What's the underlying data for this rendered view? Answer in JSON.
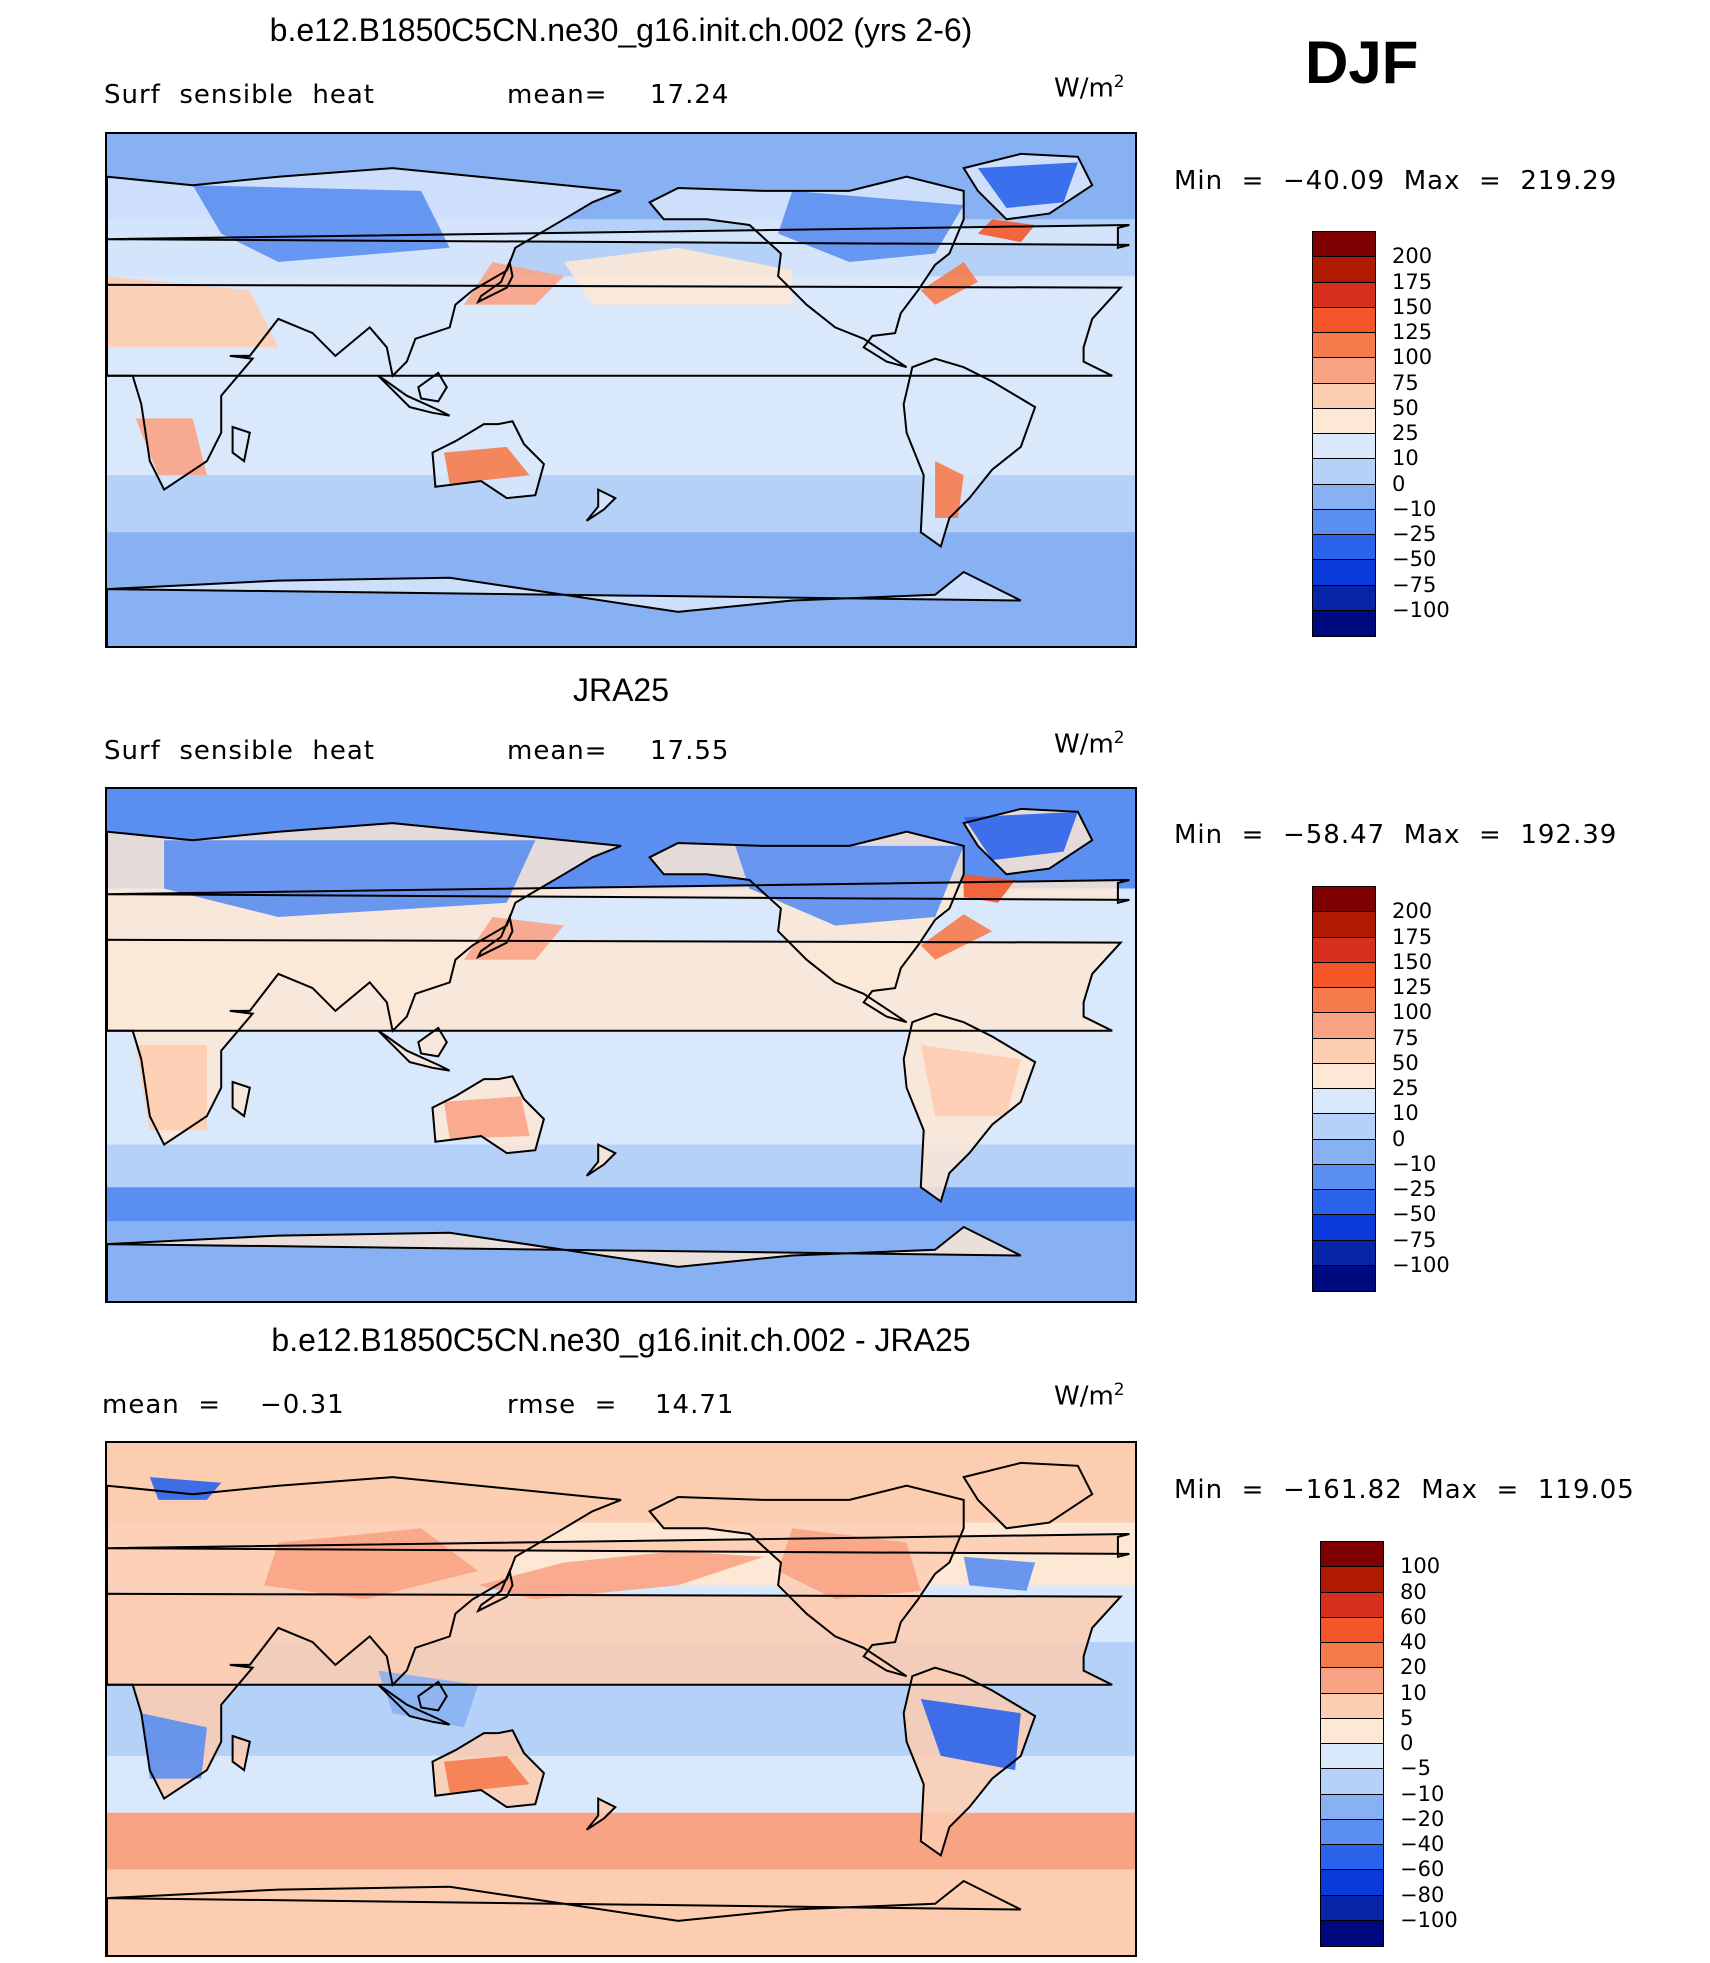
{
  "season": "DJF",
  "panels": [
    {
      "title": "b.e12.B1850C5CN.ne30_g16.init.ch.002 (yrs 2-6)",
      "variable": "Surf  sensible  heat",
      "stat1_label": "mean=",
      "stat1_value": "17.24",
      "stat2_label": "",
      "stat2_value": "",
      "units": "W/m",
      "units_sup": "2",
      "minmax": "Min  =  −40.09  Max  =  219.29",
      "levels": [
        "200",
        "175",
        "150",
        "125",
        "100",
        "75",
        "50",
        "25",
        "10",
        "0",
        "−10",
        "−25",
        "−50",
        "−75",
        "−100"
      ]
    },
    {
      "title": "JRA25",
      "variable": "Surf  sensible  heat",
      "stat1_label": "mean=",
      "stat1_value": "17.55",
      "stat2_label": "",
      "stat2_value": "",
      "units": "W/m",
      "units_sup": "2",
      "minmax": "Min  =  −58.47  Max  =  192.39",
      "levels": [
        "200",
        "175",
        "150",
        "125",
        "100",
        "75",
        "50",
        "25",
        "10",
        "0",
        "−10",
        "−25",
        "−50",
        "−75",
        "−100"
      ]
    },
    {
      "title": "b.e12.B1850C5CN.ne30_g16.init.ch.002 - JRA25",
      "variable": "",
      "stat1_label": "mean  =",
      "stat1_value": "−0.31",
      "stat2_label": "rmse  =",
      "stat2_value": "14.71",
      "units": "W/m",
      "units_sup": "2",
      "minmax": "Min  =  −161.82  Max  =  119.05",
      "levels": [
        "100",
        "80",
        "60",
        "40",
        "20",
        "10",
        "5",
        "0",
        "−5",
        "−10",
        "−20",
        "−40",
        "−60",
        "−80",
        "−100"
      ]
    }
  ],
  "colors": {
    "palette": [
      "#7f0000",
      "#b01a00",
      "#d7301f",
      "#f4562a",
      "#f67b4c",
      "#f9a385",
      "#fdcdb1",
      "#fde8d6",
      "#d9e8fb",
      "#b5d1f8",
      "#87b1f3",
      "#5a8ef0",
      "#2a63ec",
      "#0a3ad9",
      "#0524a6",
      "#000a80"
    ],
    "coast": "#000000"
  }
}
